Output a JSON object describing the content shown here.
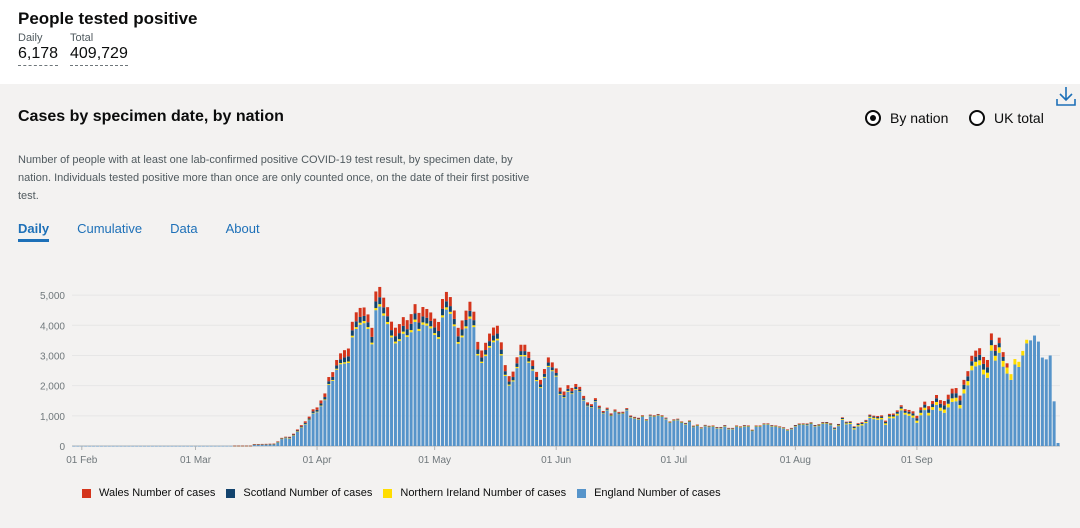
{
  "header": {
    "title": "People tested positive",
    "daily_label": "Daily",
    "daily_value": "6,178",
    "total_label": "Total",
    "total_value": "409,729"
  },
  "card": {
    "title": "Cases by specimen date, by nation",
    "radio_by_nation": "By nation",
    "radio_uk_total": "UK total",
    "description": "Number of people with at least one lab-confirmed positive COVID-19 test result, by specimen date, by nation. Individuals tested positive more than once are only counted once, on the date of their first positive test.",
    "tabs": [
      "Daily",
      "Cumulative",
      "Data",
      "About"
    ],
    "active_tab": "Daily"
  },
  "colors": {
    "wales": "#d4351c",
    "scotland": "#12436d",
    "northern_ireland": "#ffdd00",
    "england": "#5694ca",
    "link": "#1d70b8"
  },
  "icons": {
    "download": "download-icon"
  },
  "chart_data": {
    "type": "bar",
    "stacked": true,
    "title": "Cases by specimen date, by nation",
    "ylim": [
      0,
      5500
    ],
    "yticks": [
      0,
      1000,
      2000,
      3000,
      4000,
      5000
    ],
    "ytick_labels": [
      "0",
      "1,000",
      "2,000",
      "3,000",
      "4,000",
      "5,000"
    ],
    "x_start": "30 Jan",
    "x_end": "23 Sep",
    "xticks": [
      {
        "label": "01 Feb",
        "day": 2
      },
      {
        "label": "01 Mar",
        "day": 31
      },
      {
        "label": "01 Apr",
        "day": 62
      },
      {
        "label": "01 May",
        "day": 92
      },
      {
        "label": "01 Jun",
        "day": 123
      },
      {
        "label": "01 Jul",
        "day": 153
      },
      {
        "label": "01 Aug",
        "day": 184
      },
      {
        "label": "01 Sep",
        "day": 215
      }
    ],
    "legend": [
      "Wales Number of cases",
      "Scotland Number of cases",
      "Northern Ireland Number of cases",
      "England Number of cases"
    ],
    "series": [
      {
        "name": "England Number of cases",
        "values": [
          2,
          2,
          2,
          2,
          2,
          2,
          2,
          2,
          2,
          2,
          2,
          2,
          2,
          2,
          2,
          2,
          2,
          2,
          2,
          2,
          2,
          2,
          2,
          2,
          2,
          2,
          2,
          2,
          2,
          2,
          2,
          2,
          2,
          2,
          2,
          3,
          3,
          3,
          3,
          3,
          3,
          5,
          5,
          5,
          5,
          5,
          60,
          60,
          60,
          60,
          60,
          60,
          130,
          240,
          270,
          260,
          350,
          480,
          610,
          720,
          860,
          1080,
          1120,
          1320,
          1520,
          2030,
          2160,
          2530,
          2710,
          2730,
          2750,
          3600,
          3880,
          4020,
          4070,
          3880,
          3370,
          4500,
          4620,
          4320,
          4040,
          3600,
          3400,
          3480,
          3720,
          3610,
          3770,
          4110,
          3810,
          4020,
          3990,
          3900,
          3680,
          3550,
          4260,
          4520,
          4380,
          3970,
          3390,
          3600,
          3900,
          4220,
          3940,
          3000,
          2750,
          2980,
          3260,
          3440,
          3500,
          3000,
          2320,
          2000,
          2140,
          2580,
          2970,
          2970,
          2760,
          2500,
          2150,
          1920,
          2260,
          2620,
          2480,
          2300,
          1700,
          1590,
          1800,
          1720,
          1860,
          1790,
          1510,
          1320,
          1270,
          1470,
          1230,
          1080,
          1190,
          1000,
          1130,
          1060,
          1070,
          1190,
          950,
          910,
          880,
          970,
          840,
          990,
          970,
          1010,
          970,
          890,
          770,
          840,
          860,
          770,
          720,
          800,
          630,
          670,
          580,
          660,
          630,
          640,
          590,
          590,
          650,
          560,
          560,
          640,
          610,
          650,
          640,
          500,
          640,
          640,
          710,
          710,
          650,
          640,
          610,
          580,
          510,
          560,
          650,
          700,
          700,
          690,
          730,
          640,
          660,
          730,
          730,
          690,
          550,
          660,
          870,
          720,
          730,
          550,
          650,
          680,
          760,
          930,
          890,
          870,
          880,
          700,
          920,
          920,
          1010,
          1180,
          1040,
          1000,
          940,
          770,
          1020,
          1190,
          1010,
          1200,
          1360,
          1170,
          1100,
          1280,
          1460,
          1480,
          1250,
          1740,
          2010,
          2510,
          2640,
          2680,
          2370,
          2260,
          3160,
          2830,
          3090,
          2630,
          2400,
          2190,
          2700,
          2620,
          3000,
          3400,
          3500,
          3660,
          3460,
          2930,
          2870,
          3000,
          1480,
          100
        ]
      },
      {
        "name": "Northern Ireland Number of cases",
        "values": [
          0,
          0,
          0,
          0,
          0,
          0,
          0,
          0,
          0,
          0,
          0,
          0,
          0,
          0,
          0,
          0,
          0,
          0,
          0,
          0,
          0,
          0,
          0,
          0,
          0,
          0,
          0,
          0,
          0,
          0,
          0,
          0,
          0,
          0,
          0,
          0,
          0,
          0,
          0,
          0,
          0,
          1,
          1,
          1,
          1,
          1,
          1,
          1,
          2,
          2,
          3,
          3,
          3,
          4,
          5,
          6,
          7,
          8,
          10,
          12,
          14,
          16,
          18,
          20,
          22,
          25,
          28,
          30,
          40,
          45,
          50,
          55,
          60,
          65,
          70,
          60,
          55,
          70,
          80,
          75,
          70,
          60,
          60,
          60,
          70,
          60,
          70,
          80,
          70,
          75,
          70,
          65,
          60,
          60,
          70,
          75,
          65,
          60,
          55,
          60,
          65,
          70,
          60,
          50,
          45,
          50,
          55,
          55,
          55,
          45,
          40,
          35,
          35,
          40,
          45,
          45,
          40,
          40,
          35,
          30,
          30,
          35,
          30,
          30,
          25,
          25,
          25,
          25,
          25,
          20,
          20,
          15,
          15,
          15,
          15,
          10,
          10,
          10,
          10,
          10,
          10,
          10,
          10,
          10,
          10,
          10,
          10,
          10,
          10,
          10,
          10,
          10,
          10,
          10,
          10,
          10,
          10,
          10,
          10,
          10,
          10,
          10,
          10,
          10,
          10,
          10,
          10,
          10,
          10,
          10,
          10,
          10,
          10,
          10,
          10,
          10,
          10,
          10,
          10,
          10,
          10,
          10,
          10,
          10,
          10,
          10,
          15,
          15,
          15,
          15,
          20,
          20,
          20,
          20,
          20,
          25,
          25,
          30,
          35,
          40,
          40,
          45,
          40,
          40,
          45,
          45,
          50,
          50,
          55,
          55,
          60,
          60,
          60,
          70,
          70,
          70,
          80,
          80,
          90,
          90,
          100,
          100,
          110,
          120,
          120,
          120,
          110,
          140,
          140,
          150,
          150,
          160,
          160,
          170,
          180,
          160,
          180,
          190,
          200,
          190,
          180,
          170,
          150,
          120
        ]
      },
      {
        "name": "Scotland Number of cases",
        "values": [
          0,
          0,
          0,
          0,
          0,
          0,
          0,
          0,
          0,
          0,
          0,
          0,
          0,
          0,
          0,
          0,
          0,
          0,
          0,
          0,
          0,
          0,
          0,
          0,
          0,
          0,
          0,
          0,
          0,
          0,
          0,
          0,
          0,
          0,
          0,
          0,
          0,
          0,
          0,
          0,
          0,
          2,
          2,
          2,
          2,
          2,
          3,
          3,
          4,
          5,
          6,
          8,
          10,
          12,
          15,
          18,
          22,
          26,
          30,
          35,
          40,
          50,
          60,
          70,
          80,
          90,
          100,
          110,
          120,
          160,
          170,
          180,
          190,
          190,
          170,
          160,
          190,
          220,
          230,
          200,
          190,
          180,
          180,
          200,
          190,
          200,
          210,
          200,
          210,
          200,
          190,
          180,
          190,
          200,
          220,
          200,
          190,
          180,
          190,
          200,
          210,
          190,
          170,
          150,
          140,
          150,
          160,
          170,
          170,
          150,
          120,
          100,
          110,
          120,
          130,
          130,
          120,
          110,
          100,
          90,
          100,
          110,
          100,
          90,
          80,
          70,
          70,
          70,
          70,
          60,
          50,
          40,
          40,
          40,
          40,
          30,
          30,
          30,
          30,
          30,
          25,
          25,
          20,
          20,
          20,
          20,
          20,
          20,
          20,
          20,
          20,
          20,
          20,
          20,
          20,
          20,
          20,
          20,
          20,
          20,
          20,
          20,
          20,
          20,
          20,
          20,
          20,
          20,
          20,
          20,
          20,
          20,
          20,
          20,
          20,
          20,
          20,
          20,
          20,
          20,
          20,
          20,
          20,
          20,
          25,
          25,
          25,
          30,
          30,
          30,
          30,
          30,
          30,
          30,
          30,
          30,
          35,
          35,
          35,
          40,
          40,
          40,
          40,
          40,
          40,
          45,
          45,
          50,
          50,
          55,
          60,
          60,
          60,
          65,
          70,
          80,
          90,
          100,
          110,
          100,
          120,
          130,
          140,
          150,
          160,
          150,
          150,
          150,
          160,
          150,
          170,
          180,
          190,
          180,
          170,
          160,
          140,
          130
        ]
      },
      {
        "name": "Wales Number of cases",
        "values": [
          0,
          0,
          0,
          0,
          0,
          0,
          0,
          0,
          0,
          0,
          0,
          0,
          0,
          0,
          0,
          0,
          0,
          0,
          0,
          0,
          0,
          0,
          0,
          0,
          0,
          0,
          0,
          0,
          0,
          0,
          0,
          0,
          0,
          0,
          0,
          0,
          0,
          0,
          0,
          0,
          0,
          1,
          1,
          1,
          1,
          1,
          2,
          2,
          3,
          4,
          6,
          8,
          10,
          14,
          18,
          22,
          28,
          34,
          40,
          50,
          60,
          70,
          80,
          100,
          120,
          140,
          160,
          180,
          200,
          240,
          260,
          280,
          300,
          300,
          280,
          260,
          300,
          330,
          340,
          320,
          300,
          280,
          280,
          300,
          290,
          300,
          320,
          310,
          320,
          310,
          290,
          280,
          290,
          300,
          320,
          310,
          300,
          280,
          280,
          300,
          310,
          300,
          280,
          250,
          230,
          240,
          250,
          260,
          260,
          240,
          200,
          180,
          180,
          200,
          210,
          210,
          200,
          190,
          170,
          150,
          160,
          170,
          160,
          150,
          130,
          120,
          120,
          110,
          100,
          90,
          80,
          70,
          60,
          60,
          50,
          40,
          40,
          40,
          40,
          30,
          30,
          30,
          30,
          25,
          25,
          20,
          20,
          20,
          20,
          20,
          20,
          20,
          15,
          15,
          15,
          15,
          15,
          15,
          15,
          10,
          10,
          10,
          10,
          10,
          10,
          10,
          10,
          10,
          10,
          10,
          10,
          10,
          10,
          10,
          10,
          10,
          10,
          10,
          10,
          10,
          10,
          10,
          10,
          10,
          10,
          10,
          10,
          10,
          10,
          10,
          10,
          10,
          15,
          15,
          15,
          15,
          20,
          20,
          20,
          20,
          25,
          25,
          25,
          30,
          30,
          35,
          40,
          40,
          40,
          45,
          50,
          50,
          60,
          60,
          70,
          80,
          90,
          100,
          110,
          100,
          110,
          120,
          140,
          150,
          160,
          170,
          160,
          160,
          170,
          180,
          200,
          220,
          230,
          240,
          220,
          200,
          180,
          160,
          140
        ]
      }
    ]
  }
}
